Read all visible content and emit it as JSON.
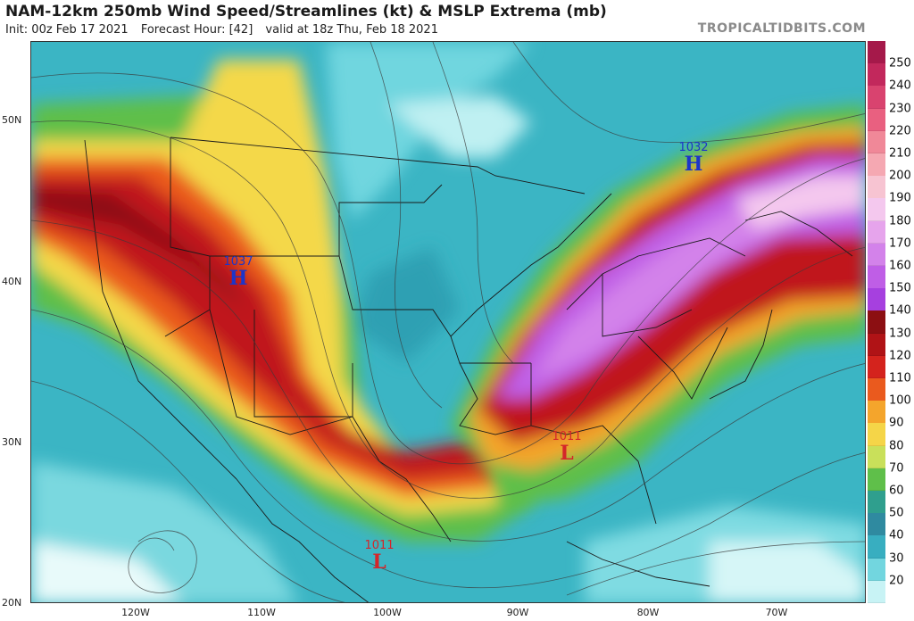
{
  "header": {
    "title": "NAM-12km 250mb Wind Speed/Streamlines (kt) & MSLP Extrema (mb)",
    "init": "Init: 00z Feb 17 2021",
    "forecast_hour": "Forecast Hour: [42]",
    "valid": "valid at 18z Thu, Feb 18 2021",
    "brand": "TROPICALTIDBITS.COM"
  },
  "axes": {
    "lat_labels": [
      "50N",
      "40N",
      "30N",
      "20N"
    ],
    "lon_labels": [
      "120W",
      "110W",
      "100W",
      "90W",
      "80W",
      "70W"
    ]
  },
  "colorbar": {
    "labels": [
      "250",
      "240",
      "230",
      "220",
      "210",
      "200",
      "190",
      "180",
      "170",
      "160",
      "150",
      "140",
      "130",
      "120",
      "110",
      "100",
      "90",
      "80",
      "70",
      "60",
      "50",
      "40",
      "30",
      "20"
    ],
    "colors": [
      "#a5194a",
      "#c2285c",
      "#d9436f",
      "#e96080",
      "#f08898",
      "#f5a8b2",
      "#f7c4d2",
      "#f4c8ee",
      "#e6a4ec",
      "#d382ea",
      "#bf5ee6",
      "#a640df",
      "#8c0f12",
      "#b01316",
      "#d4231d",
      "#ea5a1e",
      "#f4a52c",
      "#f5d548",
      "#c9e05a",
      "#5fbf4a",
      "#2f9f8e",
      "#2f8aa0",
      "#38aec0",
      "#72d6df",
      "#c8f3f5"
    ]
  },
  "pressure_extrema": [
    {
      "type": "H",
      "value": "1037",
      "color": "#1c35c9"
    },
    {
      "type": "H",
      "value": "1032",
      "color": "#1c35c9"
    },
    {
      "type": "L",
      "value": "1011",
      "color": "#d4262a"
    },
    {
      "type": "L",
      "value": "1011",
      "color": "#d4262a"
    }
  ],
  "colors": {
    "background_low": "#35b6c6",
    "jet_core": "#a640df",
    "outline": "#1a1a1a"
  }
}
